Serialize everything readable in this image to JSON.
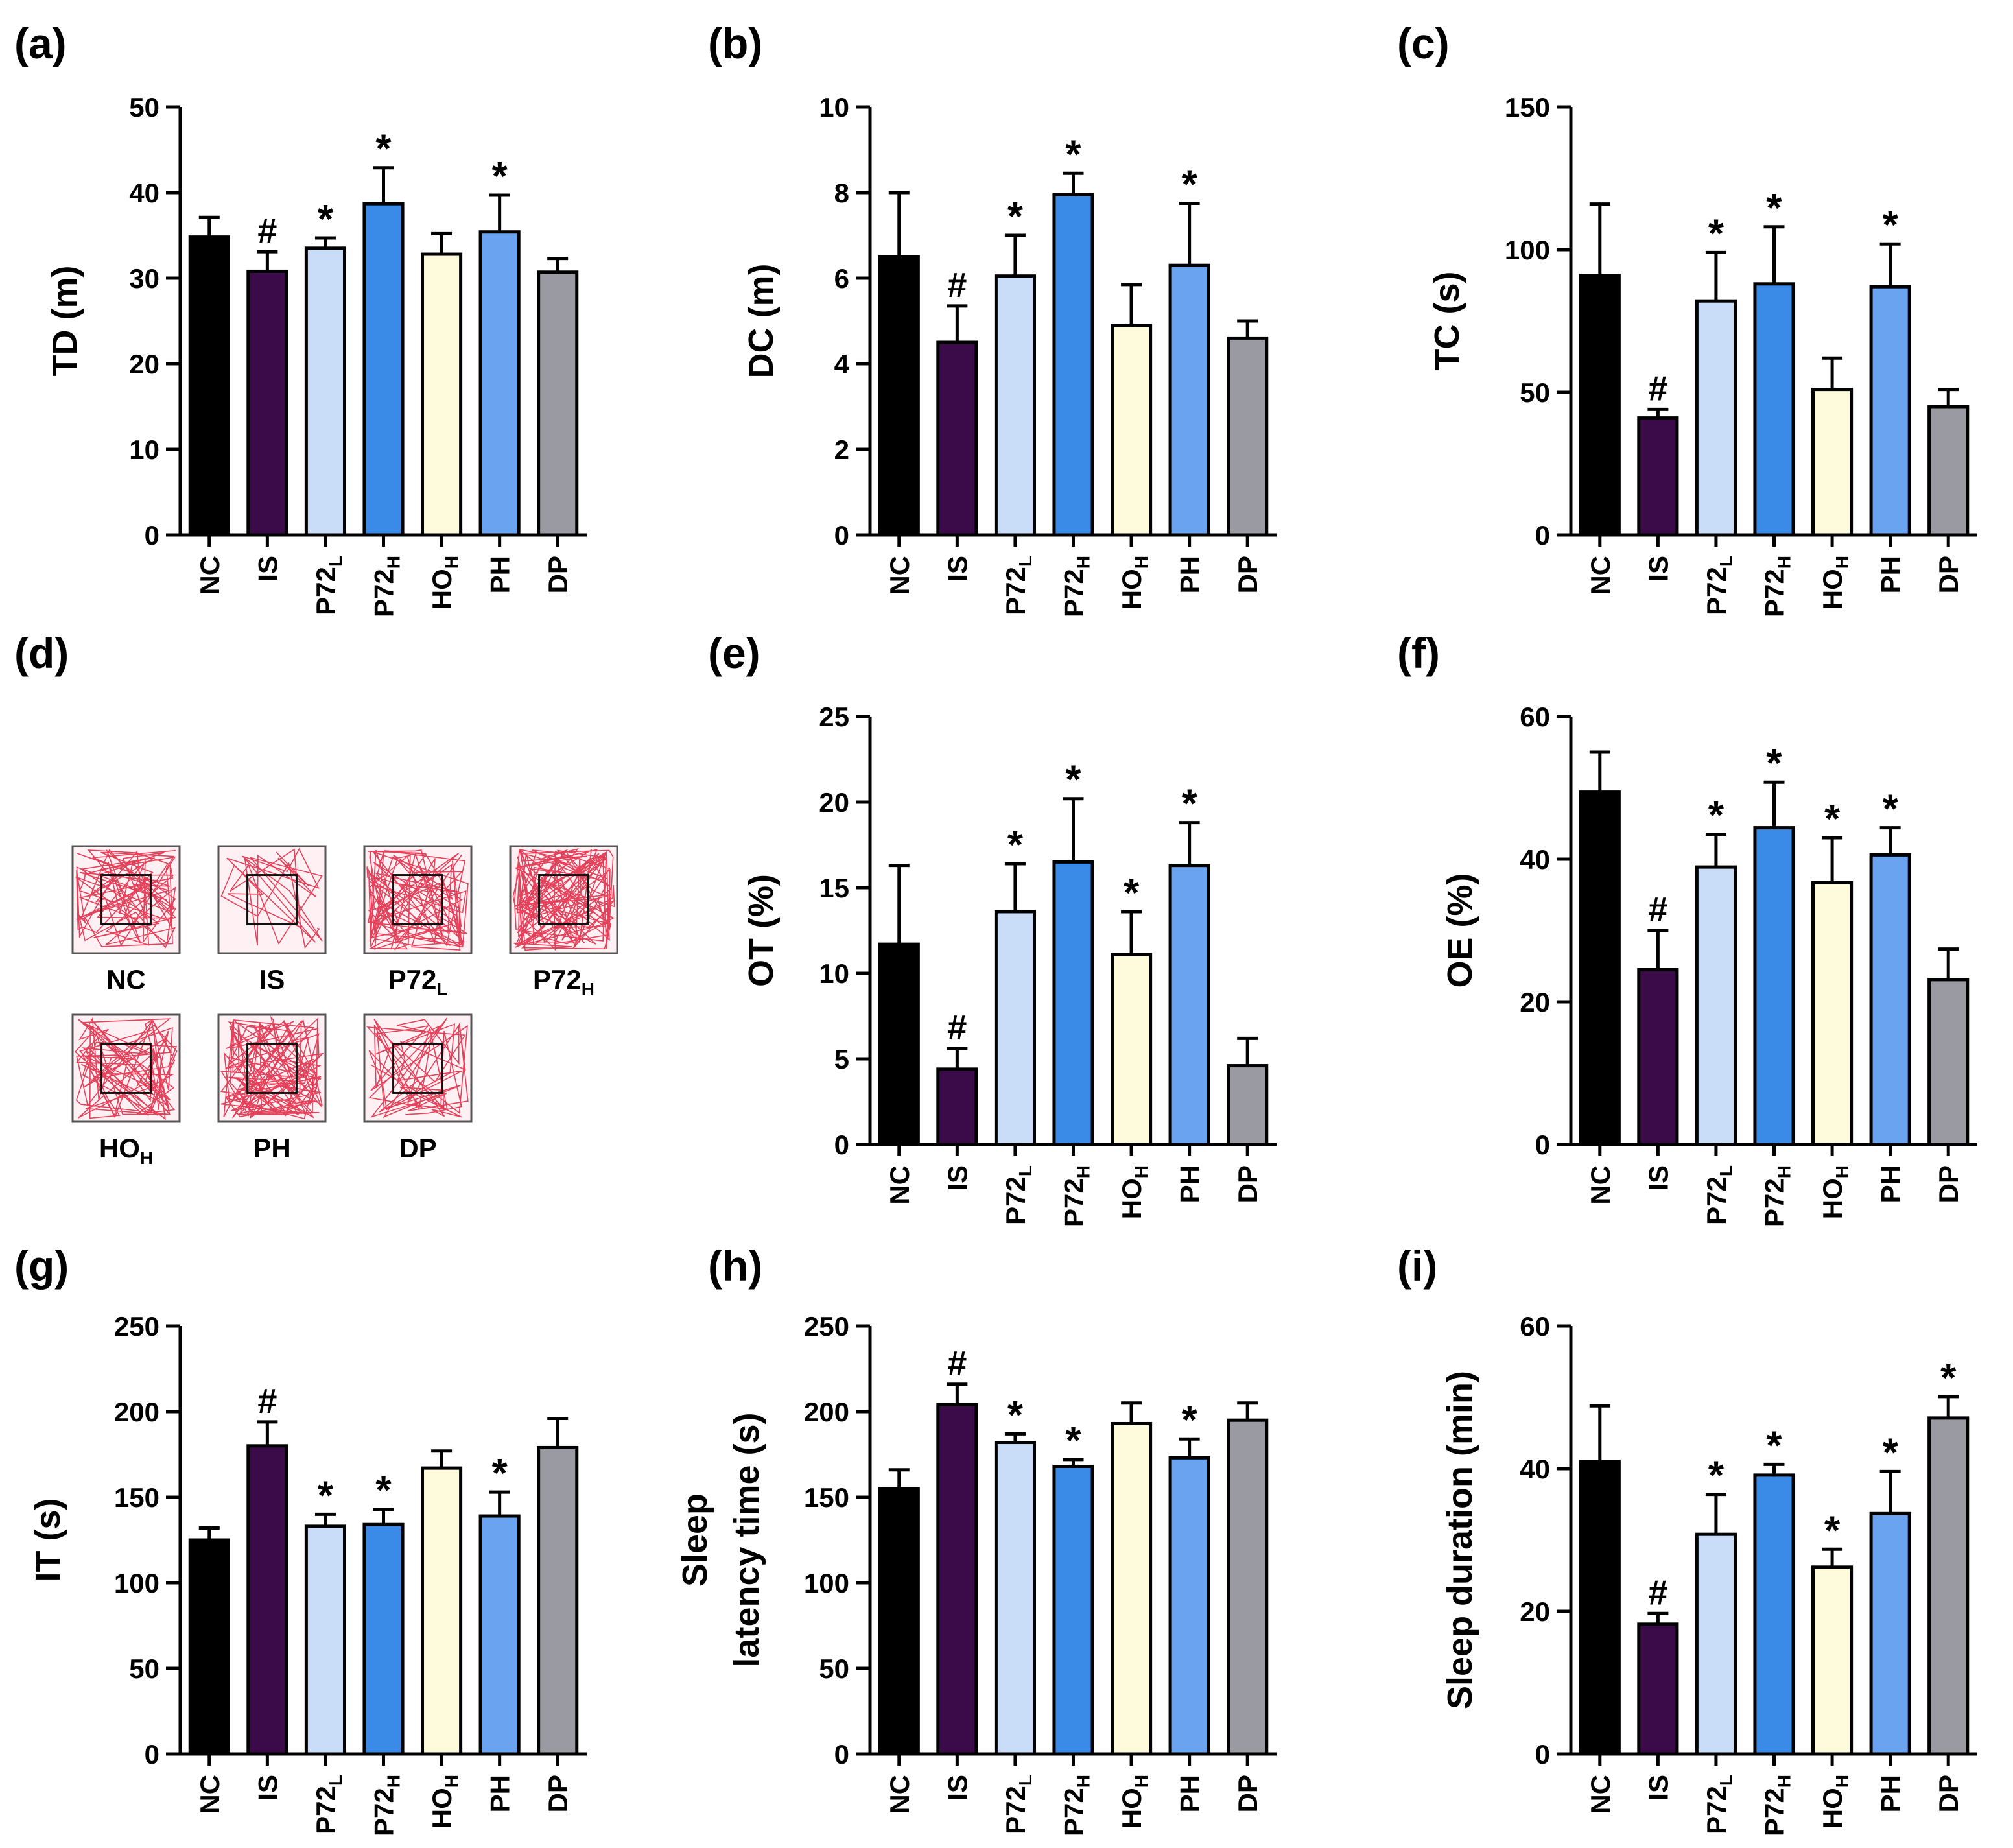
{
  "groups": [
    {
      "label": "NC",
      "sub": "",
      "color": "#000000"
    },
    {
      "label": "IS",
      "sub": "",
      "color": "#3b0a48"
    },
    {
      "label": "P72",
      "sub": "L",
      "color": "#c9dcf8"
    },
    {
      "label": "P72",
      "sub": "H",
      "color": "#3a8be8"
    },
    {
      "label": "HO",
      "sub": "H",
      "color": "#fefbdc"
    },
    {
      "label": "PH",
      "sub": "",
      "color": "#6aa3f0"
    },
    {
      "label": "DP",
      "sub": "",
      "color": "#9a9aa2"
    }
  ],
  "chart_data": [
    {
      "id": "a",
      "panel_label": "(a)",
      "type": "bar",
      "ylabel": "TD (m)",
      "ylim": [
        0,
        50
      ],
      "yticks": [
        "0",
        "10",
        "20",
        "30",
        "40",
        "50"
      ],
      "values": [
        34.8,
        30.8,
        33.5,
        38.7,
        32.8,
        35.4,
        30.7
      ],
      "errors": [
        2.3,
        2.3,
        1.2,
        4.2,
        2.4,
        4.3,
        1.6
      ],
      "sig": [
        "",
        "#",
        "*",
        "*",
        "",
        "*",
        ""
      ]
    },
    {
      "id": "b",
      "panel_label": "(b)",
      "type": "bar",
      "ylabel": "DC (m)",
      "ylim": [
        0,
        10
      ],
      "yticks": [
        "0",
        "2",
        "4",
        "6",
        "8",
        "10"
      ],
      "values": [
        6.5,
        4.5,
        6.05,
        7.95,
        4.9,
        6.3,
        4.6
      ],
      "errors": [
        1.5,
        0.85,
        0.95,
        0.5,
        0.95,
        1.45,
        0.4
      ],
      "sig": [
        "",
        "#",
        "*",
        "*",
        "",
        "*",
        ""
      ]
    },
    {
      "id": "c",
      "panel_label": "(c)",
      "type": "bar",
      "ylabel": "TC (s)",
      "ylim": [
        0,
        150
      ],
      "yticks": [
        "0",
        "50",
        "100",
        "150"
      ],
      "values": [
        91,
        41,
        82,
        88,
        51,
        87,
        45
      ],
      "errors": [
        25,
        3,
        17,
        20,
        11,
        15,
        6
      ],
      "sig": [
        "",
        "#",
        "*",
        "*",
        "",
        "*",
        ""
      ]
    },
    {
      "id": "e",
      "panel_label": "(e)",
      "type": "bar",
      "ylabel": "OT (%)",
      "ylim": [
        0,
        25
      ],
      "yticks": [
        "0",
        "5",
        "10",
        "15",
        "20",
        "25"
      ],
      "values": [
        11.7,
        4.4,
        13.6,
        16.5,
        11.1,
        16.3,
        4.6
      ],
      "errors": [
        4.6,
        1.2,
        2.8,
        3.7,
        2.5,
        2.5,
        1.6
      ],
      "sig": [
        "",
        "#",
        "*",
        "*",
        "*",
        "*",
        ""
      ]
    },
    {
      "id": "f",
      "panel_label": "(f)",
      "type": "bar",
      "ylabel": "OE (%)",
      "ylim": [
        0,
        60
      ],
      "yticks": [
        "0",
        "20",
        "40",
        "60"
      ],
      "values": [
        49.4,
        24.5,
        38.9,
        44.4,
        36.7,
        40.6,
        23.1
      ],
      "errors": [
        5.6,
        5.5,
        4.6,
        6.4,
        6.3,
        3.8,
        4.3
      ],
      "sig": [
        "",
        "#",
        "*",
        "*",
        "*",
        "*",
        ""
      ]
    },
    {
      "id": "g",
      "panel_label": "(g)",
      "type": "bar",
      "ylabel": "IT (s)",
      "ylim": [
        0,
        250
      ],
      "yticks": [
        "0",
        "50",
        "100",
        "150",
        "200",
        "250"
      ],
      "values": [
        125,
        180,
        133,
        134,
        167,
        139,
        179
      ],
      "errors": [
        7,
        14,
        7,
        9,
        10,
        14,
        17
      ],
      "sig": [
        "",
        "#",
        "*",
        "*",
        "",
        "*",
        ""
      ]
    },
    {
      "id": "h",
      "panel_label": "(h)",
      "type": "bar",
      "ylabel": "Sleep",
      "ylabel2": "latency time (s)",
      "ylim": [
        0,
        250
      ],
      "yticks": [
        "0",
        "50",
        "100",
        "150",
        "200",
        "250"
      ],
      "values": [
        155,
        204,
        182,
        168,
        193,
        173,
        195
      ],
      "errors": [
        11,
        12,
        5,
        4,
        12,
        11,
        10
      ],
      "sig": [
        "",
        "#",
        "*",
        "*",
        "",
        "*",
        ""
      ]
    },
    {
      "id": "i",
      "panel_label": "(i)",
      "type": "bar",
      "ylabel": "Sleep duration (min)",
      "ylim": [
        0,
        60
      ],
      "yticks": [
        "0",
        "20",
        "40",
        "60"
      ],
      "values": [
        41,
        18.2,
        30.8,
        39.1,
        26.2,
        33.7,
        47.1
      ],
      "errors": [
        7.8,
        1.5,
        5.6,
        1.5,
        2.5,
        5.9,
        3
      ],
      "sig": [
        "",
        "#",
        "*",
        "*",
        "*",
        "*",
        "*"
      ]
    }
  ],
  "panel_d": {
    "panel_label": "(d)",
    "arenas": [
      {
        "label": "NC",
        "sub": "",
        "density": 90
      },
      {
        "label": "IS",
        "sub": "",
        "density": 30
      },
      {
        "label": "P72",
        "sub": "L",
        "density": 110
      },
      {
        "label": "P72",
        "sub": "H",
        "density": 150
      },
      {
        "label": "HO",
        "sub": "H",
        "density": 85
      },
      {
        "label": "PH",
        "sub": "",
        "density": 120
      },
      {
        "label": "DP",
        "sub": "",
        "density": 60
      }
    ]
  }
}
